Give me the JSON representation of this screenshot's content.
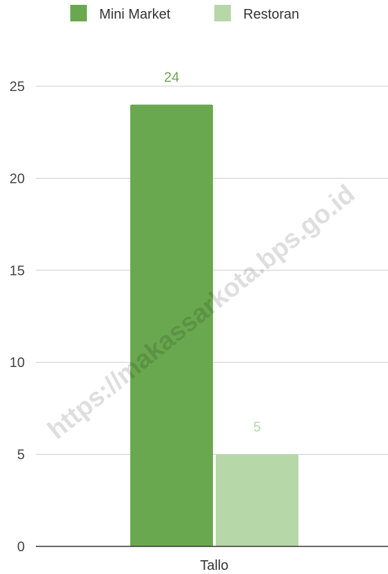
{
  "chart_data": {
    "type": "bar",
    "categories": [
      "Tallo"
    ],
    "series": [
      {
        "name": "Mini Market",
        "values": [
          24
        ],
        "color": "#6aa84f",
        "label_color": "#6aa84f"
      },
      {
        "name": "Restoran",
        "values": [
          5
        ],
        "color": "#b6d7a8",
        "label_color": "#b6d7a8"
      }
    ],
    "title": "",
    "xlabel": "",
    "ylabel": "",
    "ylim": [
      0,
      25
    ],
    "yticks": [
      0,
      5,
      10,
      15,
      20,
      25
    ],
    "grid": true,
    "legend_position": "top",
    "data_labels": true
  },
  "watermark": {
    "text": "https://makassarkota.bps.go.id"
  },
  "colors": {
    "gridline": "#cccccc",
    "baseline": "#333333",
    "tick_text": "#444444"
  }
}
